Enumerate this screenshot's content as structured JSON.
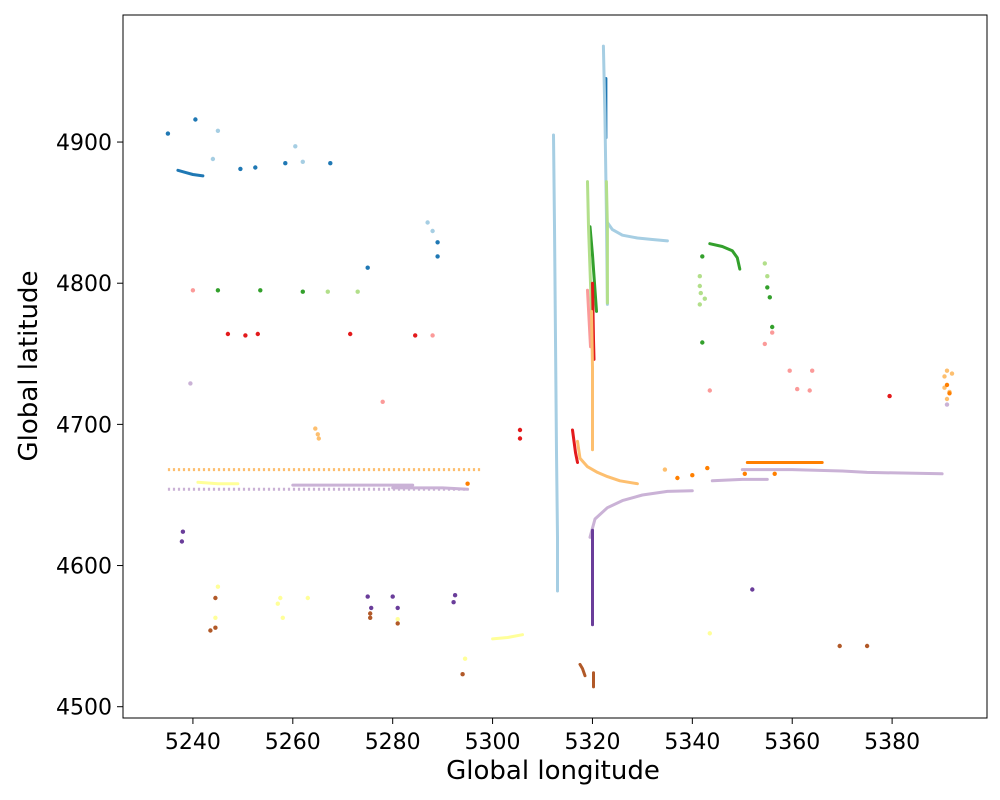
{
  "chart_data": {
    "type": "scatter",
    "title": "",
    "xlabel": "Global longitude",
    "ylabel": "Global latitude",
    "xlim": [
      5226,
      5399
    ],
    "ylim": [
      4492,
      4990
    ],
    "xticks": [
      5240,
      5260,
      5280,
      5300,
      5320,
      5340,
      5360,
      5380
    ],
    "yticks": [
      4500,
      4600,
      4700,
      4800,
      4900
    ],
    "grid": false,
    "legend": "none",
    "series": [
      {
        "color": "#1f78b4",
        "points": [
          [
            5235,
            4906
          ],
          [
            5240.5,
            4916
          ],
          [
            5249.5,
            4881
          ],
          [
            5252.5,
            4882
          ],
          [
            5258.5,
            4885
          ],
          [
            5267.5,
            4885
          ],
          [
            5275,
            4811
          ],
          [
            5289,
            4829
          ],
          [
            5289,
            4819
          ]
        ]
      },
      {
        "color": "#1f78b4",
        "kind": "line",
        "points": [
          [
            5237,
            4880
          ],
          [
            5238.5,
            4878.5
          ],
          [
            5240,
            4877
          ],
          [
            5242,
            4876
          ]
        ]
      },
      {
        "color": "#1f78b4",
        "kind": "line",
        "points": [
          [
            5322.7,
            4903
          ],
          [
            5322.7,
            4920
          ],
          [
            5322.7,
            4945
          ]
        ]
      },
      {
        "color": "#a6cee3",
        "points": [
          [
            5244,
            4888
          ],
          [
            5245,
            4908
          ],
          [
            5260.5,
            4897
          ],
          [
            5262,
            4886
          ],
          [
            5287,
            4843
          ],
          [
            5288,
            4837
          ]
        ]
      },
      {
        "color": "#a6cee3",
        "kind": "line",
        "points": [
          [
            5313,
            4582
          ],
          [
            5313,
            4620
          ],
          [
            5312.8,
            4680
          ],
          [
            5312.6,
            4760
          ],
          [
            5312.4,
            4840
          ],
          [
            5312.2,
            4905
          ]
        ]
      },
      {
        "color": "#a6cee3",
        "kind": "line",
        "points": [
          [
            5323,
            4785
          ],
          [
            5322.8,
            4850
          ],
          [
            5322.5,
            4920
          ],
          [
            5322.2,
            4968
          ]
        ]
      },
      {
        "color": "#a6cee3",
        "kind": "line",
        "points": [
          [
            5323,
            4843
          ],
          [
            5324,
            4838
          ],
          [
            5326,
            4834
          ],
          [
            5329,
            4832
          ],
          [
            5332,
            4831
          ],
          [
            5335,
            4830
          ]
        ]
      },
      {
        "color": "#33a02c",
        "points": [
          [
            5245,
            4795
          ],
          [
            5253.5,
            4795
          ],
          [
            5262,
            4794
          ],
          [
            5342,
            4819
          ],
          [
            5342,
            4758
          ],
          [
            5355,
            4797
          ],
          [
            5355.5,
            4790
          ],
          [
            5356,
            4769
          ]
        ]
      },
      {
        "color": "#33a02c",
        "kind": "line",
        "points": [
          [
            5319.5,
            4840
          ],
          [
            5320,
            4820
          ],
          [
            5320.4,
            4800
          ],
          [
            5320.8,
            4780
          ]
        ]
      },
      {
        "color": "#33a02c",
        "kind": "line",
        "points": [
          [
            5343.5,
            4828
          ],
          [
            5346,
            4826
          ],
          [
            5348,
            4823
          ],
          [
            5349,
            4818
          ],
          [
            5349.5,
            4810
          ]
        ]
      },
      {
        "color": "#b2df8a",
        "points": [
          [
            5267,
            4794
          ],
          [
            5273,
            4794
          ],
          [
            5341.5,
            4805
          ],
          [
            5341.5,
            4798
          ],
          [
            5341.7,
            4793
          ],
          [
            5342.5,
            4789
          ],
          [
            5341.5,
            4785
          ],
          [
            5354.5,
            4814
          ],
          [
            5355,
            4805
          ]
        ]
      },
      {
        "color": "#b2df8a",
        "kind": "line",
        "points": [
          [
            5319,
            4872
          ],
          [
            5319.2,
            4840
          ],
          [
            5319.5,
            4810
          ],
          [
            5319.8,
            4780
          ]
        ]
      },
      {
        "color": "#b2df8a",
        "kind": "line",
        "points": [
          [
            5322.8,
            4872
          ],
          [
            5323,
            4840
          ],
          [
            5323,
            4800
          ],
          [
            5323,
            4786
          ]
        ]
      },
      {
        "color": "#e31a1c",
        "points": [
          [
            5247,
            4764
          ],
          [
            5250.5,
            4763
          ],
          [
            5253,
            4764
          ],
          [
            5271.5,
            4764
          ],
          [
            5284.5,
            4763
          ],
          [
            5305.5,
            4696
          ],
          [
            5305.5,
            4690
          ],
          [
            5379.5,
            4720
          ]
        ]
      },
      {
        "color": "#e31a1c",
        "kind": "line",
        "points": [
          [
            5320,
            4800
          ],
          [
            5320.1,
            4780
          ],
          [
            5320.2,
            4760
          ],
          [
            5320.3,
            4746
          ]
        ]
      },
      {
        "color": "#e31a1c",
        "kind": "line",
        "points": [
          [
            5316,
            4696
          ],
          [
            5316.3,
            4688
          ],
          [
            5316.6,
            4680
          ],
          [
            5317,
            4673
          ]
        ]
      },
      {
        "color": "#fb9a99",
        "points": [
          [
            5240,
            4795
          ],
          [
            5278,
            4716
          ],
          [
            5288,
            4763
          ],
          [
            5343.5,
            4724
          ],
          [
            5354.5,
            4757
          ],
          [
            5356,
            4765
          ],
          [
            5359.5,
            4738
          ],
          [
            5361,
            4725
          ],
          [
            5363.5,
            4724
          ],
          [
            5364,
            4738
          ]
        ]
      },
      {
        "color": "#fb9a99",
        "kind": "line",
        "points": [
          [
            5319,
            4795
          ],
          [
            5319.3,
            4775
          ],
          [
            5319.6,
            4755
          ]
        ]
      },
      {
        "color": "#fdbf6f",
        "points": [
          [
            5264.5,
            4697
          ],
          [
            5265,
            4693
          ],
          [
            5265.2,
            4690
          ],
          [
            5334.5,
            4668
          ],
          [
            5390.5,
            4734
          ],
          [
            5391,
            4738
          ],
          [
            5392,
            4736
          ],
          [
            5390.5,
            4726
          ],
          [
            5391.5,
            4723
          ],
          [
            5391,
            4718
          ]
        ]
      },
      {
        "color": "#fdbf6f",
        "kind": "dotted",
        "points": [
          [
            5235,
            4668
          ],
          [
            5260,
            4668
          ],
          [
            5280,
            4668
          ],
          [
            5298,
            4668
          ]
        ]
      },
      {
        "color": "#fdbf6f",
        "kind": "line",
        "points": [
          [
            5319.8,
            4780
          ],
          [
            5320,
            4740
          ],
          [
            5320,
            4700
          ],
          [
            5320,
            4682
          ]
        ]
      },
      {
        "color": "#fdbf6f",
        "kind": "line",
        "points": [
          [
            5317,
            4688
          ],
          [
            5317.5,
            4676
          ],
          [
            5319,
            4670
          ],
          [
            5321,
            4666
          ],
          [
            5323,
            4663
          ],
          [
            5325.5,
            4660
          ],
          [
            5329,
            4658
          ]
        ]
      },
      {
        "color": "#ff7f00",
        "points": [
          [
            5295,
            4658
          ],
          [
            5337,
            4662
          ],
          [
            5340,
            4664
          ],
          [
            5343,
            4669
          ],
          [
            5350.5,
            4665
          ],
          [
            5356.5,
            4665
          ],
          [
            5391,
            4728
          ],
          [
            5391.5,
            4722
          ]
        ]
      },
      {
        "color": "#ff7f00",
        "kind": "line",
        "points": [
          [
            5351,
            4673
          ],
          [
            5355,
            4673
          ],
          [
            5360,
            4673
          ],
          [
            5366,
            4673
          ]
        ]
      },
      {
        "color": "#cab2d6",
        "points": [
          [
            5239.5,
            4729
          ],
          [
            5391,
            4714
          ]
        ]
      },
      {
        "color": "#cab2d6",
        "kind": "dotted",
        "points": [
          [
            5235,
            4654
          ],
          [
            5250,
            4654
          ],
          [
            5262,
            4654
          ],
          [
            5295,
            4654
          ]
        ]
      },
      {
        "color": "#cab2d6",
        "kind": "line",
        "points": [
          [
            5260,
            4657
          ],
          [
            5270,
            4657
          ],
          [
            5280,
            4657
          ],
          [
            5284,
            4657
          ]
        ]
      },
      {
        "color": "#cab2d6",
        "kind": "line",
        "points": [
          [
            5280,
            4655
          ],
          [
            5290,
            4655
          ],
          [
            5295,
            4654
          ]
        ]
      },
      {
        "color": "#cab2d6",
        "kind": "line",
        "points": [
          [
            5319.5,
            4620
          ],
          [
            5320.5,
            4633
          ],
          [
            5323,
            4641
          ],
          [
            5326,
            4646
          ],
          [
            5330,
            4650
          ],
          [
            5335,
            4652.5
          ],
          [
            5340,
            4653
          ]
        ]
      },
      {
        "color": "#cab2d6",
        "kind": "line",
        "points": [
          [
            5344,
            4660
          ],
          [
            5350,
            4661
          ],
          [
            5355,
            4661
          ]
        ]
      },
      {
        "color": "#cab2d6",
        "kind": "line",
        "points": [
          [
            5350,
            4668
          ],
          [
            5360,
            4668
          ],
          [
            5370,
            4667
          ],
          [
            5375,
            4666
          ],
          [
            5390,
            4665
          ]
        ]
      },
      {
        "color": "#6a3d9a",
        "points": [
          [
            5238,
            4624
          ],
          [
            5237.8,
            4617
          ],
          [
            5275,
            4578
          ],
          [
            5275.7,
            4570
          ],
          [
            5280,
            4578
          ],
          [
            5281,
            4570
          ],
          [
            5292.5,
            4579
          ],
          [
            5292.2,
            4574
          ],
          [
            5352,
            4583
          ]
        ]
      },
      {
        "color": "#6a3d9a",
        "kind": "line",
        "points": [
          [
            5320,
            4625
          ],
          [
            5320,
            4605
          ],
          [
            5320,
            4585
          ],
          [
            5320,
            4558
          ]
        ]
      },
      {
        "color": "#ffff99",
        "points": [
          [
            5245,
            4585
          ],
          [
            5244.5,
            4563
          ],
          [
            5257,
            4573
          ],
          [
            5257.5,
            4577
          ],
          [
            5258,
            4563
          ],
          [
            5263,
            4577
          ],
          [
            5281,
            4562
          ],
          [
            5294.5,
            4534
          ],
          [
            5343.5,
            4552
          ]
        ]
      },
      {
        "color": "#ffff99",
        "kind": "line",
        "points": [
          [
            5300,
            4548
          ],
          [
            5303,
            4549
          ],
          [
            5306,
            4551
          ]
        ]
      },
      {
        "color": "#ffff99",
        "kind": "line",
        "points": [
          [
            5241,
            4659
          ],
          [
            5245,
            4658
          ],
          [
            5249,
            4658
          ]
        ]
      },
      {
        "color": "#b15928",
        "points": [
          [
            5243.5,
            4554
          ],
          [
            5244.5,
            4556
          ],
          [
            5244.5,
            4577
          ],
          [
            5275.5,
            4566
          ],
          [
            5275.5,
            4563
          ],
          [
            5281,
            4559
          ],
          [
            5294,
            4523
          ],
          [
            5369.5,
            4543
          ],
          [
            5375,
            4543
          ]
        ]
      },
      {
        "color": "#b15928",
        "kind": "line",
        "points": [
          [
            5317.5,
            4530
          ],
          [
            5318,
            4527
          ],
          [
            5318.5,
            4522
          ]
        ]
      },
      {
        "color": "#b15928",
        "kind": "line",
        "points": [
          [
            5320.2,
            4514
          ],
          [
            5320.2,
            4520
          ],
          [
            5320.2,
            4524
          ]
        ]
      }
    ]
  }
}
